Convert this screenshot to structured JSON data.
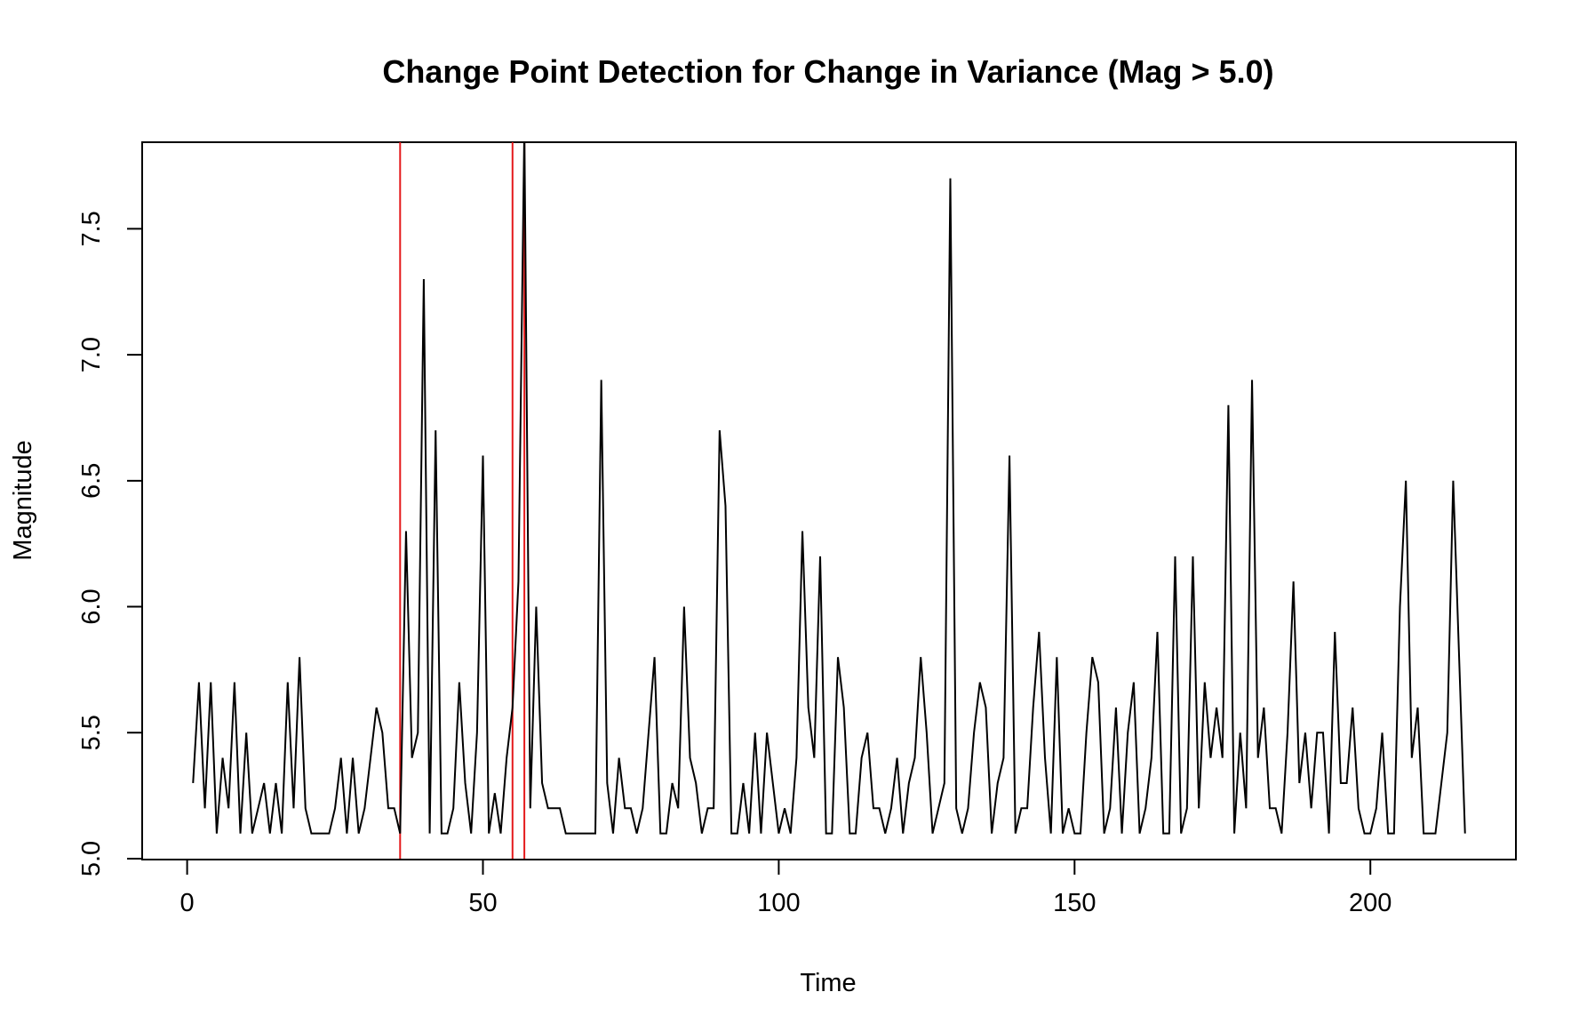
{
  "chart_data": {
    "type": "line",
    "title": "Change Point Detection for Change in Variance (Mag > 5.0)",
    "xlabel": "Time",
    "ylabel": "Magnitude",
    "xlim": [
      1,
      216
    ],
    "ylim": [
      5.0,
      7.8
    ],
    "x_ticks": [
      0,
      50,
      100,
      150,
      200
    ],
    "x_tick_labels": [
      "0",
      "50",
      "100",
      "150",
      "200"
    ],
    "y_ticks": [
      5.0,
      5.5,
      6.0,
      6.5,
      7.0,
      7.5
    ],
    "y_tick_labels": [
      "5.0",
      "5.5",
      "6.0",
      "6.5",
      "7.0",
      "7.5"
    ],
    "grid": false,
    "legend": "none",
    "series": [
      {
        "color": "#000000",
        "values": [
          5.3,
          5.7,
          5.2,
          5.7,
          5.1,
          5.4,
          5.2,
          5.7,
          5.1,
          5.5,
          5.1,
          5.2,
          5.3,
          5.1,
          5.3,
          5.1,
          5.7,
          5.2,
          5.8,
          5.2,
          5.1,
          5.1,
          5.1,
          5.1,
          5.2,
          5.4,
          5.1,
          5.4,
          5.1,
          5.2,
          5.4,
          5.6,
          5.5,
          5.2,
          5.2,
          5.1,
          6.3,
          5.4,
          5.5,
          7.3,
          5.1,
          6.7,
          5.1,
          5.1,
          5.2,
          5.7,
          5.3,
          5.1,
          5.5,
          6.6,
          5.1,
          5.26,
          5.1,
          5.4,
          5.6,
          6.1,
          7.9,
          5.2,
          6.0,
          5.3,
          5.2,
          5.2,
          5.2,
          5.1,
          5.1,
          5.1,
          5.1,
          5.1,
          5.1,
          6.9,
          5.3,
          5.1,
          5.4,
          5.2,
          5.2,
          5.1,
          5.2,
          5.5,
          5.8,
          5.1,
          5.1,
          5.3,
          5.2,
          6.0,
          5.4,
          5.3,
          5.1,
          5.2,
          5.2,
          6.7,
          6.4,
          5.1,
          5.1,
          5.3,
          5.1,
          5.5,
          5.1,
          5.5,
          5.3,
          5.1,
          5.2,
          5.1,
          5.4,
          6.3,
          5.6,
          5.4,
          6.2,
          5.1,
          5.1,
          5.8,
          5.6,
          5.1,
          5.1,
          5.4,
          5.5,
          5.2,
          5.2,
          5.1,
          5.2,
          5.4,
          5.1,
          5.3,
          5.4,
          5.8,
          5.5,
          5.1,
          5.2,
          5.3,
          7.7,
          5.2,
          5.1,
          5.2,
          5.5,
          5.7,
          5.6,
          5.1,
          5.3,
          5.4,
          6.6,
          5.1,
          5.2,
          5.2,
          5.6,
          5.9,
          5.4,
          5.1,
          5.8,
          5.1,
          5.2,
          5.1,
          5.1,
          5.5,
          5.8,
          5.7,
          5.1,
          5.2,
          5.6,
          5.1,
          5.5,
          5.7,
          5.1,
          5.2,
          5.4,
          5.9,
          5.1,
          5.1,
          6.2,
          5.1,
          5.2,
          6.2,
          5.2,
          5.7,
          5.4,
          5.6,
          5.4,
          6.8,
          5.1,
          5.5,
          5.2,
          6.9,
          5.4,
          5.6,
          5.2,
          5.2,
          5.1,
          5.5,
          6.1,
          5.3,
          5.5,
          5.2,
          5.5,
          5.5,
          5.1,
          5.9,
          5.3,
          5.3,
          5.6,
          5.2,
          5.1,
          5.1,
          5.2,
          5.5,
          5.1,
          5.1,
          6.0,
          6.5,
          5.4,
          5.6,
          5.1,
          5.1,
          5.1,
          5.3,
          5.5,
          6.5,
          5.8,
          5.1
        ]
      }
    ],
    "change_points": {
      "color": "#e41a1c",
      "x": [
        36,
        55,
        57
      ]
    }
  }
}
